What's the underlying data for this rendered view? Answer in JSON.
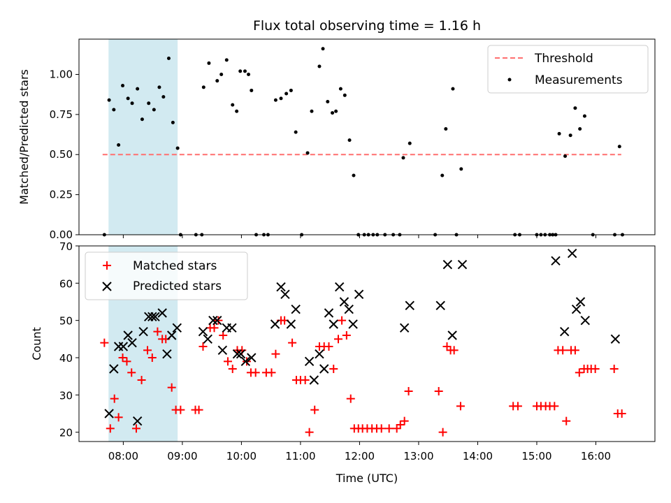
{
  "chart_data": [
    {
      "type": "scatter",
      "title": "Flux total observing time = 1.16 h",
      "xlabel": "",
      "ylabel": "Matched/Predicted stars",
      "xlim": [
        7.25,
        17.0
      ],
      "ylim": [
        0.0,
        1.22
      ],
      "yticks": [
        "0.00",
        "0.25",
        "0.50",
        "0.75",
        "1.00"
      ],
      "ytick_values": [
        0.0,
        0.25,
        0.5,
        0.75,
        1.0
      ],
      "shaded_span": {
        "start": 7.75,
        "end": 8.92,
        "color": "#add8e6"
      },
      "threshold": {
        "name": "Threshold",
        "value": 0.5,
        "xrange": [
          7.65,
          16.43
        ],
        "color": "#ff6f6f",
        "style": "dashed"
      },
      "legend": {
        "placement": "top-right",
        "entries": [
          "Threshold",
          "Measurements"
        ]
      },
      "series": [
        {
          "name": "Measurements",
          "color": "#000000",
          "marker": "dot",
          "x": [
            7.68,
            7.76,
            7.84,
            7.92,
            7.99,
            8.08,
            8.15,
            8.24,
            8.32,
            8.43,
            8.52,
            8.61,
            8.68,
            8.77,
            8.84,
            8.92,
            8.97,
            9.23,
            9.33,
            9.36,
            9.45,
            9.59,
            9.66,
            9.75,
            9.85,
            9.92,
            9.98,
            10.06,
            10.12,
            10.17,
            10.25,
            10.38,
            10.45,
            10.58,
            10.67,
            10.76,
            10.84,
            10.92,
            11.02,
            11.12,
            11.19,
            11.32,
            11.38,
            11.46,
            11.54,
            11.6,
            11.68,
            11.75,
            11.83,
            11.9,
            11.98,
            12.08,
            12.15,
            12.23,
            12.3,
            12.43,
            12.57,
            12.68,
            12.74,
            12.85,
            13.28,
            13.4,
            13.46,
            13.58,
            13.64,
            13.72,
            14.63,
            14.71,
            15.0,
            15.07,
            15.14,
            15.22,
            15.27,
            15.32,
            15.38,
            15.48,
            15.57,
            15.65,
            15.73,
            15.81,
            15.95,
            16.32,
            16.4,
            16.45
          ],
          "y": [
            0.0,
            0.84,
            0.78,
            0.56,
            0.93,
            0.85,
            0.82,
            0.91,
            0.72,
            0.82,
            0.78,
            0.92,
            0.86,
            1.1,
            0.7,
            0.54,
            0.0,
            0.0,
            0.0,
            0.92,
            1.07,
            0.96,
            1.0,
            1.09,
            0.81,
            0.77,
            1.02,
            1.02,
            1.0,
            0.9,
            0.0,
            0.0,
            0.0,
            0.84,
            0.85,
            0.88,
            0.9,
            0.64,
            0.0,
            0.51,
            0.77,
            1.05,
            1.16,
            0.83,
            0.76,
            0.77,
            0.91,
            0.87,
            0.59,
            0.37,
            0.0,
            0.0,
            0.0,
            0.0,
            0.0,
            0.0,
            0.0,
            0.0,
            0.48,
            0.57,
            0.0,
            0.37,
            0.66,
            0.91,
            0.0,
            0.41,
            0.0,
            0.0,
            0.0,
            0.0,
            0.0,
            0.0,
            0.0,
            0.0,
            0.63,
            0.49,
            0.62,
            0.79,
            0.66,
            0.74,
            0.0,
            0.0,
            0.55,
            0.0
          ]
        }
      ]
    },
    {
      "type": "scatter",
      "title": "",
      "xlabel": "Time (UTC)",
      "ylabel": "Count",
      "xlim": [
        7.25,
        17.0
      ],
      "ylim": [
        17.5,
        70.0
      ],
      "yticks": [
        "20",
        "30",
        "40",
        "50",
        "60",
        "70"
      ],
      "ytick_values": [
        20,
        30,
        40,
        50,
        60,
        70
      ],
      "xticks": [
        "08:00",
        "09:00",
        "10:00",
        "11:00",
        "12:00",
        "13:00",
        "14:00",
        "15:00",
        "16:00"
      ],
      "xtick_values": [
        8,
        9,
        10,
        11,
        12,
        13,
        14,
        15,
        16
      ],
      "shaded_span": {
        "start": 7.75,
        "end": 8.92,
        "color": "#add8e6"
      },
      "legend": {
        "placement": "top-left",
        "entries": [
          "Matched stars",
          "Predicted stars"
        ]
      },
      "series": [
        {
          "name": "Matched stars",
          "color": "#ff0000",
          "marker": "plus",
          "x": [
            7.68,
            7.78,
            7.85,
            7.92,
            7.99,
            8.06,
            8.14,
            8.22,
            8.31,
            8.41,
            8.49,
            8.58,
            8.66,
            8.72,
            8.82,
            8.89,
            8.97,
            9.22,
            9.28,
            9.35,
            9.47,
            9.54,
            9.61,
            9.69,
            9.77,
            9.85,
            9.93,
            10.01,
            10.09,
            10.16,
            10.24,
            10.42,
            10.51,
            10.58,
            10.67,
            10.73,
            10.86,
            10.93,
            11.0,
            11.08,
            11.15,
            11.24,
            11.32,
            11.4,
            11.48,
            11.56,
            11.64,
            11.7,
            11.78,
            11.85,
            11.91,
            11.98,
            12.05,
            12.13,
            12.21,
            12.29,
            12.37,
            12.5,
            12.63,
            12.69,
            12.76,
            12.83,
            13.34,
            13.41,
            13.48,
            13.54,
            13.6,
            13.71,
            14.6,
            14.68,
            15.0,
            15.07,
            15.15,
            15.22,
            15.3,
            15.36,
            15.44,
            15.5,
            15.58,
            15.65,
            15.72,
            15.8,
            15.86,
            15.92,
            15.99,
            16.31,
            16.37,
            16.44
          ],
          "y": [
            44,
            21,
            29,
            24,
            40,
            39,
            36,
            21,
            34,
            42,
            40,
            47,
            45,
            45,
            32,
            26,
            26,
            26,
            26,
            43,
            48,
            48,
            50,
            46,
            39,
            37,
            42,
            42,
            39,
            36,
            36,
            36,
            36,
            41,
            50,
            50,
            44,
            34,
            34,
            34,
            20,
            26,
            43,
            43,
            43,
            37,
            45,
            50,
            46,
            29,
            21,
            21,
            21,
            21,
            21,
            21,
            21,
            21,
            21,
            22,
            23,
            31,
            31,
            20,
            43,
            42,
            42,
            27,
            27,
            27,
            27,
            27,
            27,
            27,
            27,
            42,
            42,
            23,
            42,
            42,
            36,
            37,
            37,
            37,
            37,
            37,
            25,
            25
          ]
        },
        {
          "name": "Predicted stars",
          "color": "#000000",
          "marker": "x",
          "x": [
            7.76,
            7.84,
            7.92,
            8.0,
            8.08,
            8.15,
            8.24,
            8.34,
            8.43,
            8.49,
            8.54,
            8.66,
            8.74,
            8.82,
            8.91,
            9.35,
            9.43,
            9.52,
            9.59,
            9.68,
            9.75,
            9.84,
            9.93,
            9.99,
            10.07,
            10.17,
            10.57,
            10.67,
            10.74,
            10.84,
            10.92,
            11.15,
            11.23,
            11.32,
            11.4,
            11.48,
            11.56,
            11.66,
            11.74,
            11.82,
            11.89,
            11.99,
            12.76,
            12.85,
            13.37,
            13.49,
            13.57,
            13.74,
            15.32,
            15.47,
            15.6,
            15.67,
            15.74,
            15.82,
            16.33
          ],
          "y": [
            25,
            37,
            43,
            43,
            46,
            44,
            23,
            47,
            51,
            51,
            51,
            52,
            41,
            46,
            48,
            47,
            45,
            50,
            50,
            42,
            48,
            48,
            41,
            41,
            39,
            40,
            49,
            59,
            57,
            49,
            53,
            39,
            34,
            41,
            37,
            52,
            49,
            59,
            55,
            53,
            49,
            57,
            48,
            54,
            54,
            65,
            46,
            65,
            66,
            47,
            68,
            53,
            55,
            50,
            45
          ]
        }
      ]
    }
  ]
}
